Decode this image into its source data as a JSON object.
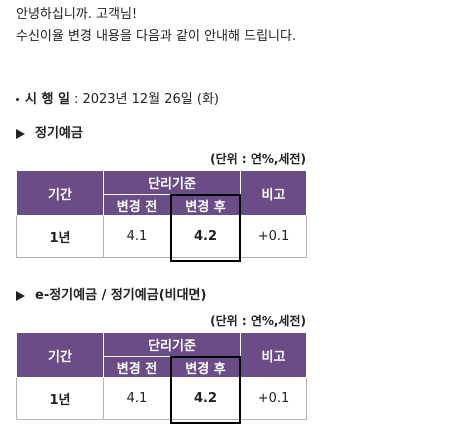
{
  "greeting": [
    "안녕하십니까. 고객님!",
    "수신이율 변경 내용을 다음과 같이 안내해 드립니다."
  ],
  "effective": {
    "label": "시 행 일",
    "date": ": 2023년 12월 26일 (화)"
  },
  "sections": [
    {
      "title": "정기예금",
      "unit": "(단위 : 연%,세전)",
      "table": {
        "header": {
          "period": "기간",
          "group": "단리기준",
          "before": "변경 전",
          "after": "변경 후",
          "note": "비고"
        },
        "rows": [
          [
            "1년",
            4.1,
            4.2,
            "+0.1"
          ]
        ]
      }
    },
    {
      "title": "e-정기예금 / 정기예금(비대면)",
      "unit": "(단위 : 연%,세전)",
      "table": {
        "header": {
          "period": "기간",
          "group": "단리기준",
          "before": "변경 전",
          "after": "변경 후",
          "note": "비고"
        },
        "rows": [
          [
            "1년",
            4.1,
            4.2,
            "+0.1"
          ]
        ]
      }
    }
  ]
}
